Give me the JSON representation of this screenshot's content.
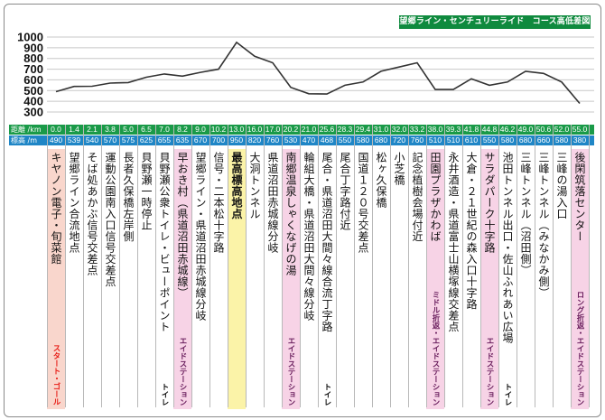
{
  "title": "望郷ライン・センチュリーライド　コース高低差図",
  "chart_data": {
    "type": "line",
    "title": "望郷ライン・センチュリーライド　コース高低差図",
    "ylim": [
      300,
      1000
    ],
    "yticks": [
      1000,
      900,
      800,
      700,
      600,
      500,
      400,
      300
    ],
    "row_labels": {
      "distance": "距離 /km",
      "elevation": "標高 /m"
    },
    "distance_km": [
      "0.0",
      "1.4",
      "2.1",
      "3.8",
      "5.0",
      "6.5",
      "7.0",
      "8.2",
      "9.0",
      "10.2",
      "13.0",
      "16.0",
      "17.0",
      "20.2",
      "21.0",
      "25.6",
      "28.3",
      "29.4",
      "31.0",
      "32.0",
      "33.2",
      "38.0",
      "39.3",
      "41.8",
      "44.8",
      "46.2",
      "49.0",
      "50.6",
      "52.0",
      "55.0"
    ],
    "elevation_m": [
      490,
      539,
      540,
      570,
      575,
      625,
      655,
      635,
      670,
      700,
      950,
      820,
      760,
      530,
      470,
      468,
      550,
      580,
      680,
      720,
      760,
      510,
      510,
      610,
      550,
      580,
      680,
      660,
      580,
      380
    ],
    "checkpoints": [
      {
        "name": "キヤノン電子・旬菜館",
        "note": "スタート・ゴール",
        "note_type": "start"
      },
      {
        "name": "望郷ライン合流地点",
        "note": "",
        "note_type": ""
      },
      {
        "name": "そば処あかぶ信号交差点",
        "note": "",
        "note_type": ""
      },
      {
        "name": "運動公園南入口信号交差点",
        "note": "",
        "note_type": ""
      },
      {
        "name": "長者久保橋左岸側",
        "note": "",
        "note_type": ""
      },
      {
        "name": "貝野瀬一時停止",
        "note": "",
        "note_type": ""
      },
      {
        "name": "貝野瀬公衆トイレ・ビューポイント",
        "note": "トイレ",
        "note_type": "toilet"
      },
      {
        "name": "早おき村（県道沼田赤城線）",
        "note": "エイドステーション",
        "note_type": "aid"
      },
      {
        "name": "望郷ライン・県道沼田赤城線分岐",
        "note": "",
        "note_type": ""
      },
      {
        "name": "信号・二本松十字路",
        "note": "",
        "note_type": ""
      },
      {
        "name": "最高標高地点",
        "note": "",
        "note_type": "peak"
      },
      {
        "name": "大洞トンネル",
        "note": "",
        "note_type": ""
      },
      {
        "name": "県道沼田赤城線分岐",
        "note": "",
        "note_type": ""
      },
      {
        "name": "南郷温泉しゃくなげの湯",
        "note": "エイドステーション",
        "note_type": "aid"
      },
      {
        "name": "輪組大橋・県道沼田大間々線分岐",
        "note": "",
        "note_type": ""
      },
      {
        "name": "尾合・県道沼田大間々線合流丁字路",
        "note": "トイレ",
        "note_type": "toilet"
      },
      {
        "name": "尾合丁字路付近",
        "note": "",
        "note_type": ""
      },
      {
        "name": "国道１２０号交差点",
        "note": "",
        "note_type": ""
      },
      {
        "name": "松ヶ久保橋",
        "note": "",
        "note_type": ""
      },
      {
        "name": "小芝橋",
        "note": "",
        "note_type": ""
      },
      {
        "name": "記念植樹会場付近",
        "note": "",
        "note_type": ""
      },
      {
        "name": "田園プラザかわば",
        "note": "ミドル折返・エイドステーション",
        "note_type": "aid"
      },
      {
        "name": "永井酒造・県道富士山横塚線交差点",
        "note": "",
        "note_type": ""
      },
      {
        "name": "大倉・２１世紀の森入口十字路",
        "note": "",
        "note_type": ""
      },
      {
        "name": "サラダパーク十字路",
        "note": "エイドステーション",
        "note_type": "aid"
      },
      {
        "name": "池田トンネル出口・佐山ふれあい広場",
        "note": "トイレ",
        "note_type": "toilet"
      },
      {
        "name": "三峰トンネル（沼田側）",
        "note": "",
        "note_type": ""
      },
      {
        "name": "三峰トンネル（みなかみ側）",
        "note": "",
        "note_type": ""
      },
      {
        "name": "三峰の湯入口",
        "note": "",
        "note_type": ""
      },
      {
        "name": "後閑筑落センター",
        "note": "ロング折返・エイドステーション",
        "note_type": "aid"
      }
    ]
  },
  "colors": {
    "badge": "#0f8a3e",
    "distance_row": "#1a9a48",
    "elevation_row": "#1f86c6",
    "line": "#333333",
    "grid": "#c8c8c8",
    "start_bg": "#f9d6cc",
    "aid_bg": "#f7d3e6",
    "peak_bg": "#fbf3a8",
    "note_red": "#e8211a",
    "note_purple": "#6a1f5e",
    "note_black": "#111111"
  }
}
